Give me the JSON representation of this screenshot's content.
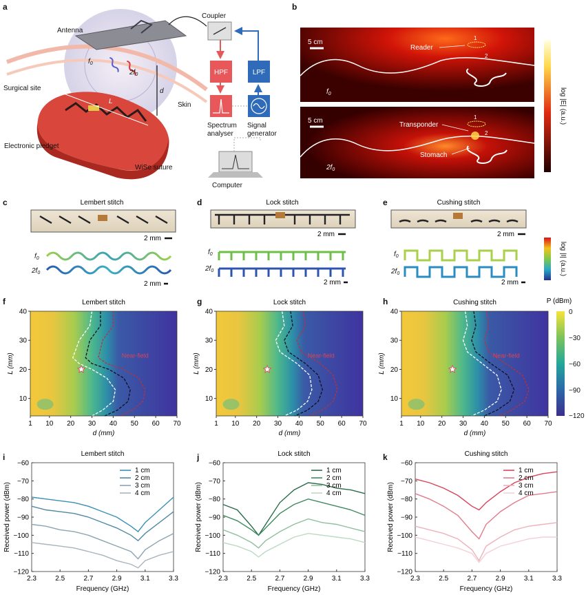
{
  "panel_letters": [
    "a",
    "b",
    "c",
    "d",
    "e",
    "f",
    "g",
    "h",
    "i",
    "j",
    "k"
  ],
  "panel_a": {
    "antenna": "Antenna",
    "coupler": "Coupler",
    "hpf": "HPF",
    "lpf": "LPF",
    "skin": "Skin",
    "surgical_site": "Surgical site",
    "spectrum_analyser": [
      "Spectrum",
      "analyser"
    ],
    "signal_generator": [
      "Signal",
      "generator"
    ],
    "electronic_pledget": "Electronic pledget",
    "wise_suture": "WiSe suture",
    "computer": "Computer",
    "f0": "f",
    "f0_sub": "0",
    "twof0": "2f",
    "d": "d",
    "L": "L"
  },
  "panel_b": {
    "scale": "5 cm",
    "reader": "Reader",
    "transponder": "Transponder",
    "stomach": "Stomach",
    "marker1": "1",
    "marker2": "2",
    "f0": "f",
    "twof0": "2f",
    "sub": "0",
    "colorbar_label": "log |E| (a.u.)"
  },
  "stitch_panels": [
    {
      "title": "Lembert stitch",
      "photo_scale": "2 mm",
      "sim_scale": "2 mm"
    },
    {
      "title": "Lock stitch",
      "photo_scale": "2 mm",
      "sim_scale": "2 mm"
    },
    {
      "title": "Cushing stitch",
      "photo_scale": "2 mm",
      "sim_scale": "2 mm"
    }
  ],
  "sim_row_labels": {
    "f0": "f",
    "twof0": "2f",
    "sub": "0"
  },
  "current_colorbar_label": "log |I| (a.u.)",
  "power_colorbar": {
    "label": "P (dBm)",
    "ticks": [
      "0",
      "−30",
      "−60",
      "−90",
      "−120"
    ]
  },
  "near_field_label": "Near-field",
  "colors": {
    "red_module": "#e8585a",
    "blue_module": "#2f6bb8",
    "tissue": "#d9463b"
  },
  "chart_data": [
    {
      "type": "heatmap",
      "title": "Lembert stitch",
      "xlabel": "d (mm)",
      "ylabel": "L (mm)",
      "xlim": [
        1,
        70
      ],
      "ylim": [
        4,
        40
      ],
      "xticks": [
        "1",
        "10",
        "20",
        "30",
        "40",
        "50",
        "60",
        "70"
      ],
      "yticks": [
        "10",
        "20",
        "30",
        "40"
      ],
      "colorbar": {
        "label": "P (dBm)",
        "range": [
          -120,
          0
        ]
      },
      "optimum": {
        "d": 25,
        "L": 20
      },
      "black_boundary": {
        "d": [
          34,
          34,
          29,
          27,
          30,
          38,
          45,
          48,
          47,
          42,
          36
        ],
        "L": [
          40,
          35,
          30,
          24,
          22,
          20,
          17,
          13,
          9,
          6,
          4
        ]
      },
      "white_boundary": {
        "d": [
          30,
          29,
          24,
          21,
          24,
          30,
          37,
          41,
          40,
          35,
          30
        ],
        "L": [
          40,
          35,
          30,
          24,
          22,
          20,
          17,
          13,
          9,
          6,
          4
        ]
      },
      "red_boundary": {
        "d": [
          40,
          40,
          35,
          33,
          37,
          45,
          52,
          55,
          54,
          49,
          43
        ],
        "L": [
          40,
          35,
          30,
          24,
          22,
          20,
          17,
          13,
          9,
          6,
          4
        ]
      }
    },
    {
      "type": "heatmap",
      "title": "Lock stitch",
      "xlabel": "d (mm)",
      "ylabel": "L (mm)",
      "xlim": [
        1,
        70
      ],
      "ylim": [
        4,
        40
      ],
      "xticks": [
        "1",
        "10",
        "20",
        "30",
        "40",
        "50",
        "60",
        "70"
      ],
      "yticks": [
        "10",
        "20",
        "30",
        "40"
      ],
      "colorbar": {
        "label": "P (dBm)",
        "range": [
          -120,
          0
        ]
      },
      "optimum": {
        "d": 25,
        "L": 20
      },
      "black_boundary": {
        "d": [
          36,
          37,
          33,
          35,
          43,
          49,
          51,
          49,
          44,
          38
        ],
        "L": [
          40,
          35,
          30,
          26,
          22,
          18,
          13,
          9,
          6,
          4
        ]
      },
      "white_boundary": {
        "d": [
          32,
          33,
          29,
          31,
          39,
          45,
          46,
          44,
          39,
          33
        ],
        "L": [
          40,
          35,
          30,
          26,
          22,
          18,
          13,
          9,
          6,
          4
        ]
      },
      "red_boundary": {
        "d": [
          42,
          43,
          39,
          41,
          50,
          56,
          58,
          56,
          51,
          45
        ],
        "L": [
          40,
          35,
          30,
          26,
          22,
          18,
          13,
          9,
          6,
          4
        ]
      }
    },
    {
      "type": "heatmap",
      "title": "Cushing stitch",
      "xlabel": "d (mm)",
      "ylabel": "L (mm)",
      "xlim": [
        1,
        70
      ],
      "ylim": [
        4,
        40
      ],
      "xticks": [
        "1",
        "10",
        "20",
        "30",
        "40",
        "50",
        "60",
        "70"
      ],
      "yticks": [
        "10",
        "20",
        "30",
        "40"
      ],
      "colorbar": {
        "label": "P (dBm)",
        "range": [
          -120,
          0
        ]
      },
      "optimum": {
        "d": 25,
        "L": 20
      },
      "black_boundary": {
        "d": [
          35,
          36,
          34,
          36,
          43,
          51,
          54,
          52,
          46,
          40
        ],
        "L": [
          40,
          35,
          30,
          26,
          22,
          18,
          13,
          9,
          6,
          4
        ]
      },
      "white_boundary": {
        "d": [
          31,
          32,
          30,
          32,
          39,
          46,
          48,
          46,
          40,
          34
        ],
        "L": [
          40,
          35,
          30,
          26,
          22,
          18,
          13,
          9,
          6,
          4
        ]
      },
      "red_boundary": {
        "d": [
          41,
          42,
          40,
          42,
          50,
          58,
          61,
          59,
          53,
          47
        ],
        "L": [
          40,
          35,
          30,
          26,
          22,
          18,
          13,
          9,
          6,
          4
        ]
      }
    },
    {
      "type": "line",
      "title": "Lembert stitch",
      "xlabel": "Frequency (GHz)",
      "ylabel": "Received power (dBm)",
      "xlim": [
        2.3,
        3.3
      ],
      "ylim": [
        -120,
        -60
      ],
      "xticks": [
        "2.3",
        "2.5",
        "2.7",
        "2.9",
        "3.1",
        "3.3"
      ],
      "yticks": [
        "−60",
        "−70",
        "−80",
        "−90",
        "−100",
        "−110",
        "−120"
      ],
      "x": [
        2.3,
        2.4,
        2.5,
        2.6,
        2.7,
        2.8,
        2.9,
        3.0,
        3.05,
        3.1,
        3.2,
        3.3
      ],
      "series": [
        {
          "name": "1 cm",
          "color": "#3a8fb5",
          "values": [
            -79,
            -80,
            -81,
            -82,
            -84,
            -87,
            -90,
            -95,
            -98,
            -93,
            -86,
            -79
          ]
        },
        {
          "name": "2 cm",
          "color": "#4f89a3",
          "values": [
            -84,
            -86,
            -87,
            -88,
            -90,
            -93,
            -96,
            -100,
            -103,
            -99,
            -93,
            -87
          ]
        },
        {
          "name": "3 cm",
          "color": "#8aa4b2",
          "values": [
            -94,
            -95,
            -97,
            -98,
            -100,
            -103,
            -106,
            -109,
            -113,
            -108,
            -103,
            -99
          ]
        },
        {
          "name": "4 cm",
          "color": "#a9b4ba",
          "values": [
            -104,
            -105,
            -106,
            -107,
            -109,
            -111,
            -114,
            -116,
            -118,
            -114,
            -111,
            -109
          ]
        }
      ],
      "legend": "top-right"
    },
    {
      "type": "line",
      "title": "Lock stitch",
      "xlabel": "Frequency (GHz)",
      "ylabel": "Received power (dBm)",
      "xlim": [
        2.3,
        3.3
      ],
      "ylim": [
        -120,
        -60
      ],
      "xticks": [
        "2.3",
        "2.5",
        "2.7",
        "2.9",
        "3.1",
        "3.3"
      ],
      "yticks": [
        "−60",
        "−70",
        "−80",
        "−90",
        "−100",
        "−110",
        "−120"
      ],
      "x": [
        2.3,
        2.4,
        2.5,
        2.55,
        2.6,
        2.7,
        2.8,
        2.9,
        3.0,
        3.1,
        3.2,
        3.3
      ],
      "series": [
        {
          "name": "1 cm",
          "color": "#2a6b4a",
          "values": [
            -83,
            -86,
            -95,
            -100,
            -94,
            -82,
            -75,
            -71,
            -72,
            -74,
            -75,
            -77
          ]
        },
        {
          "name": "2 cm",
          "color": "#3d8a5d",
          "values": [
            -89,
            -92,
            -97,
            -100,
            -96,
            -88,
            -83,
            -80,
            -82,
            -84,
            -86,
            -89
          ]
        },
        {
          "name": "3 cm",
          "color": "#8fbf9e",
          "values": [
            -97,
            -100,
            -104,
            -107,
            -103,
            -98,
            -94,
            -91,
            -93,
            -94,
            -96,
            -98
          ]
        },
        {
          "name": "4 cm",
          "color": "#bcd9c3",
          "values": [
            -104,
            -106,
            -109,
            -112,
            -109,
            -105,
            -101,
            -99,
            -100,
            -101,
            -102,
            -104
          ]
        }
      ],
      "legend": "top-right"
    },
    {
      "type": "line",
      "title": "Cushing stitch",
      "xlabel": "Frequency (GHz)",
      "ylabel": "Received power (dBm)",
      "xlim": [
        2.3,
        3.3
      ],
      "ylim": [
        -120,
        -60
      ],
      "xticks": [
        "2.3",
        "2.5",
        "2.7",
        "2.9",
        "3.1",
        "3.3"
      ],
      "yticks": [
        "−60",
        "−70",
        "−80",
        "−90",
        "−100",
        "−110",
        "−120"
      ],
      "x": [
        2.3,
        2.4,
        2.5,
        2.6,
        2.7,
        2.75,
        2.8,
        2.9,
        3.0,
        3.1,
        3.2,
        3.3
      ],
      "series": [
        {
          "name": "1 cm",
          "color": "#d9435a",
          "values": [
            -69,
            -71,
            -74,
            -78,
            -84,
            -86,
            -82,
            -76,
            -71,
            -68,
            -66,
            -65
          ]
        },
        {
          "name": "2 cm",
          "color": "#e07c8c",
          "values": [
            -77,
            -80,
            -84,
            -89,
            -98,
            -102,
            -94,
            -87,
            -82,
            -78,
            -77,
            -76
          ]
        },
        {
          "name": "3 cm",
          "color": "#eeb1bb",
          "values": [
            -95,
            -97,
            -99,
            -102,
            -108,
            -114,
            -106,
            -101,
            -97,
            -95,
            -94,
            -93
          ]
        },
        {
          "name": "4 cm",
          "color": "#f4d0d6",
          "values": [
            -101,
            -103,
            -105,
            -107,
            -110,
            -115,
            -110,
            -106,
            -104,
            -102,
            -101,
            -101
          ]
        }
      ],
      "legend": "top-right"
    }
  ]
}
